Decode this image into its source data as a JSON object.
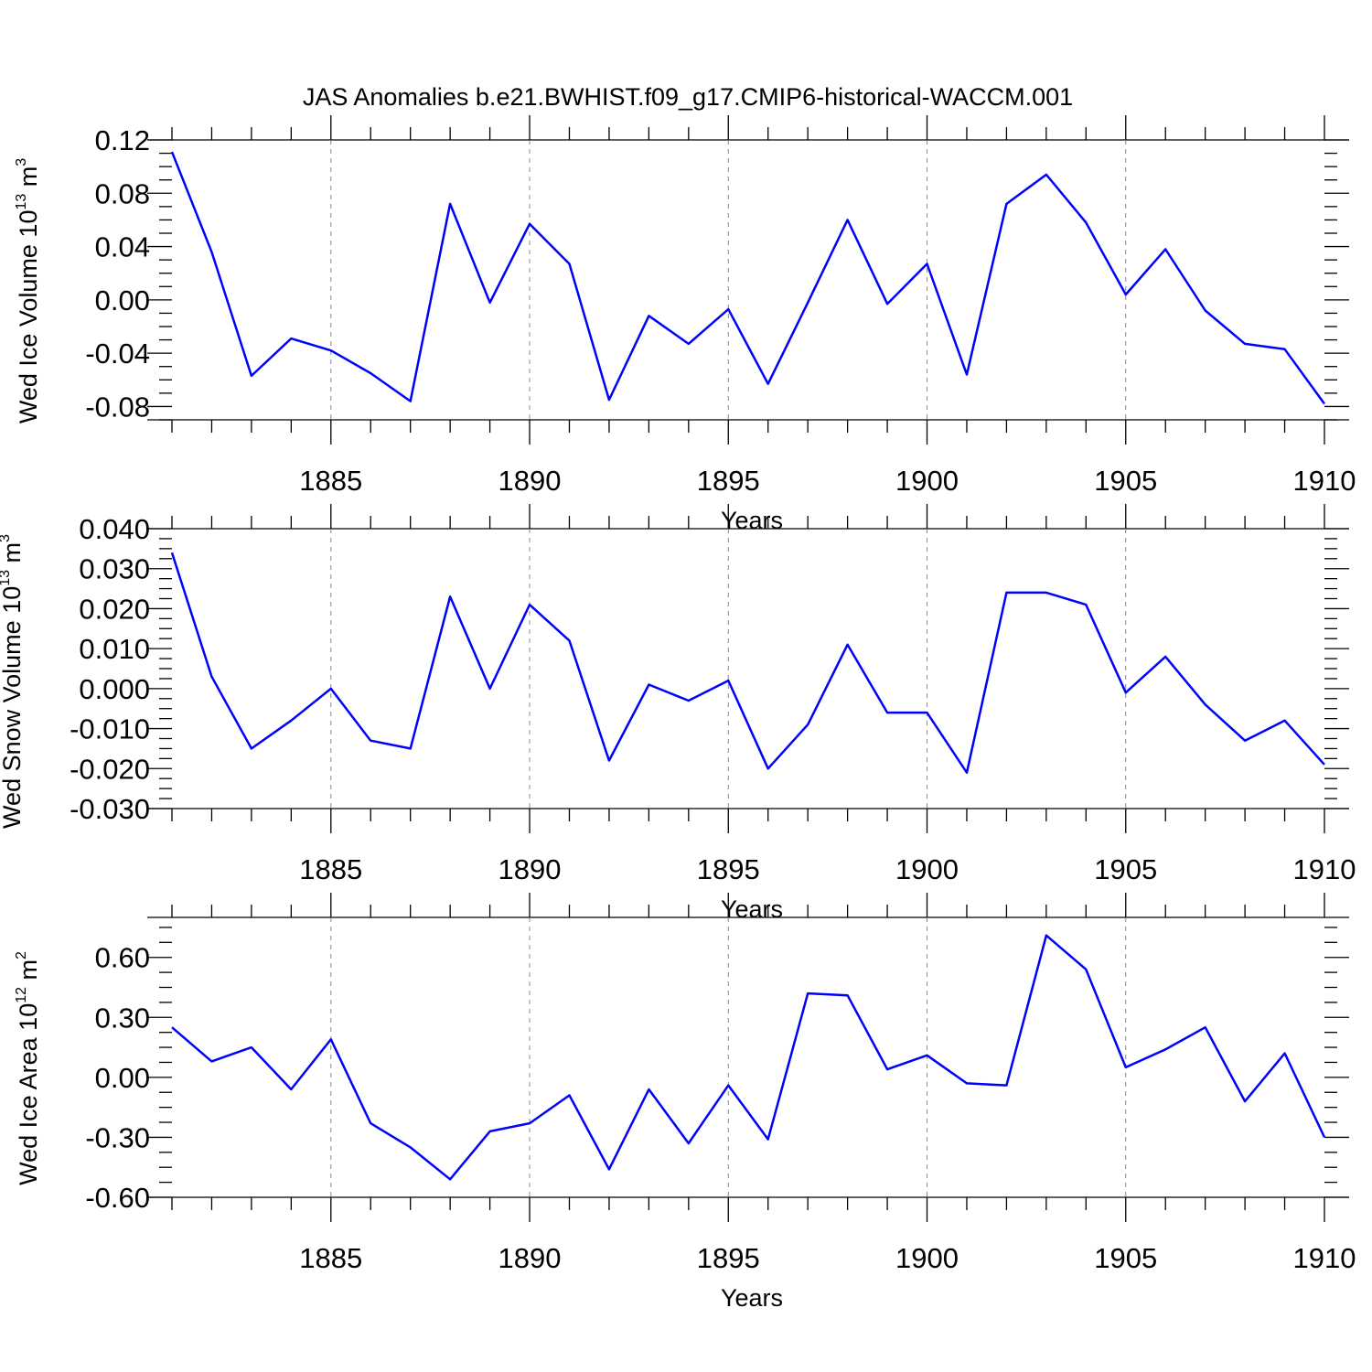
{
  "figure_title": "JAS Anomalies b.e21.BWHIST.f09_g17.CMIP6-historical-WACCM.001",
  "chart_data": [
    {
      "type": "line",
      "title": "JAS Anomalies b.e21.BWHIST.f09_g17.CMIP6-historical-WACCM.001",
      "ylabel": {
        "text": "Wed Ice Volume 10",
        "exp": "13",
        "unit": " m",
        "unit_exp": "3"
      },
      "xlabel": "Years",
      "xlim": [
        1881,
        1910
      ],
      "ylim": [
        -0.09,
        0.12
      ],
      "yticks": [
        0.12,
        0.08,
        0.04,
        0.0,
        -0.04,
        -0.08
      ],
      "ytick_labels": [
        "0.12",
        "0.08",
        "0.04",
        "0.00",
        "-0.04",
        "-0.08"
      ],
      "xticks": [
        1885,
        1890,
        1895,
        1900,
        1905,
        1910
      ],
      "xtick_labels": [
        "1885",
        "1890",
        "1895",
        "1900",
        "1905",
        "1910"
      ],
      "grid": "vertical dashed at major x ticks",
      "color": "#0000ff",
      "x": [
        1881,
        1882,
        1883,
        1884,
        1885,
        1886,
        1887,
        1888,
        1889,
        1890,
        1891,
        1892,
        1893,
        1894,
        1895,
        1896,
        1897,
        1898,
        1899,
        1900,
        1901,
        1902,
        1903,
        1904,
        1905,
        1906,
        1907,
        1908,
        1909,
        1910
      ],
      "values": [
        0.111,
        0.036,
        -0.057,
        -0.029,
        -0.038,
        -0.055,
        -0.076,
        0.072,
        -0.002,
        0.057,
        0.027,
        -0.075,
        -0.012,
        -0.033,
        -0.007,
        -0.063,
        -0.002,
        0.06,
        -0.003,
        0.027,
        -0.056,
        0.072,
        0.094,
        0.058,
        0.004,
        0.038,
        -0.008,
        -0.033,
        -0.037,
        -0.078
      ]
    },
    {
      "type": "line",
      "ylabel": {
        "text": "Wed Snow Volume 10",
        "exp": "13",
        "unit": " m",
        "unit_exp": "3"
      },
      "xlabel": "Years",
      "xlim": [
        1881,
        1910
      ],
      "ylim": [
        -0.03,
        0.04
      ],
      "yticks": [
        0.04,
        0.03,
        0.02,
        0.01,
        0.0,
        -0.01,
        -0.02,
        -0.03
      ],
      "ytick_labels": [
        "0.040",
        "0.030",
        "0.020",
        "0.010",
        "0.000",
        "-0.010",
        "-0.020",
        "-0.030"
      ],
      "xticks": [
        1885,
        1890,
        1895,
        1900,
        1905,
        1910
      ],
      "xtick_labels": [
        "1885",
        "1890",
        "1895",
        "1900",
        "1905",
        "1910"
      ],
      "grid": "vertical dashed at major x ticks",
      "color": "#0000ff",
      "x": [
        1881,
        1882,
        1883,
        1884,
        1885,
        1886,
        1887,
        1888,
        1889,
        1890,
        1891,
        1892,
        1893,
        1894,
        1895,
        1896,
        1897,
        1898,
        1899,
        1900,
        1901,
        1902,
        1903,
        1904,
        1905,
        1906,
        1907,
        1908,
        1909,
        1910
      ],
      "values": [
        0.034,
        0.003,
        -0.015,
        -0.008,
        0.0,
        -0.013,
        -0.015,
        0.023,
        0.0,
        0.021,
        0.012,
        -0.018,
        0.001,
        -0.003,
        0.002,
        -0.02,
        -0.009,
        0.011,
        -0.006,
        -0.006,
        -0.021,
        0.024,
        0.024,
        0.021,
        -0.001,
        0.008,
        -0.004,
        -0.013,
        -0.008,
        -0.019
      ]
    },
    {
      "type": "line",
      "ylabel": {
        "text": "Wed Ice Area 10",
        "exp": "12",
        "unit": " m",
        "unit_exp": "2"
      },
      "xlabel": "Years",
      "xlim": [
        1881,
        1910
      ],
      "ylim": [
        -0.6,
        0.8
      ],
      "yticks": [
        0.6,
        0.3,
        0.0,
        -0.3,
        -0.6
      ],
      "ytick_labels": [
        "0.60",
        "0.30",
        "0.00",
        "-0.30",
        "-0.60"
      ],
      "xticks": [
        1885,
        1890,
        1895,
        1900,
        1905,
        1910
      ],
      "xtick_labels": [
        "1885",
        "1890",
        "1895",
        "1900",
        "1905",
        "1910"
      ],
      "grid": "vertical dashed at major x ticks",
      "color": "#0000ff",
      "x": [
        1881,
        1882,
        1883,
        1884,
        1885,
        1886,
        1887,
        1888,
        1889,
        1890,
        1891,
        1892,
        1893,
        1894,
        1895,
        1896,
        1897,
        1898,
        1899,
        1900,
        1901,
        1902,
        1903,
        1904,
        1905,
        1906,
        1907,
        1908,
        1909,
        1910
      ],
      "values": [
        0.25,
        0.08,
        0.15,
        -0.06,
        0.19,
        -0.23,
        -0.35,
        -0.51,
        -0.27,
        -0.23,
        -0.09,
        -0.46,
        -0.06,
        -0.33,
        -0.04,
        -0.31,
        0.42,
        0.41,
        0.04,
        0.11,
        -0.03,
        -0.04,
        0.71,
        0.54,
        0.05,
        0.14,
        0.25,
        -0.12,
        0.12,
        -0.3
      ]
    }
  ]
}
